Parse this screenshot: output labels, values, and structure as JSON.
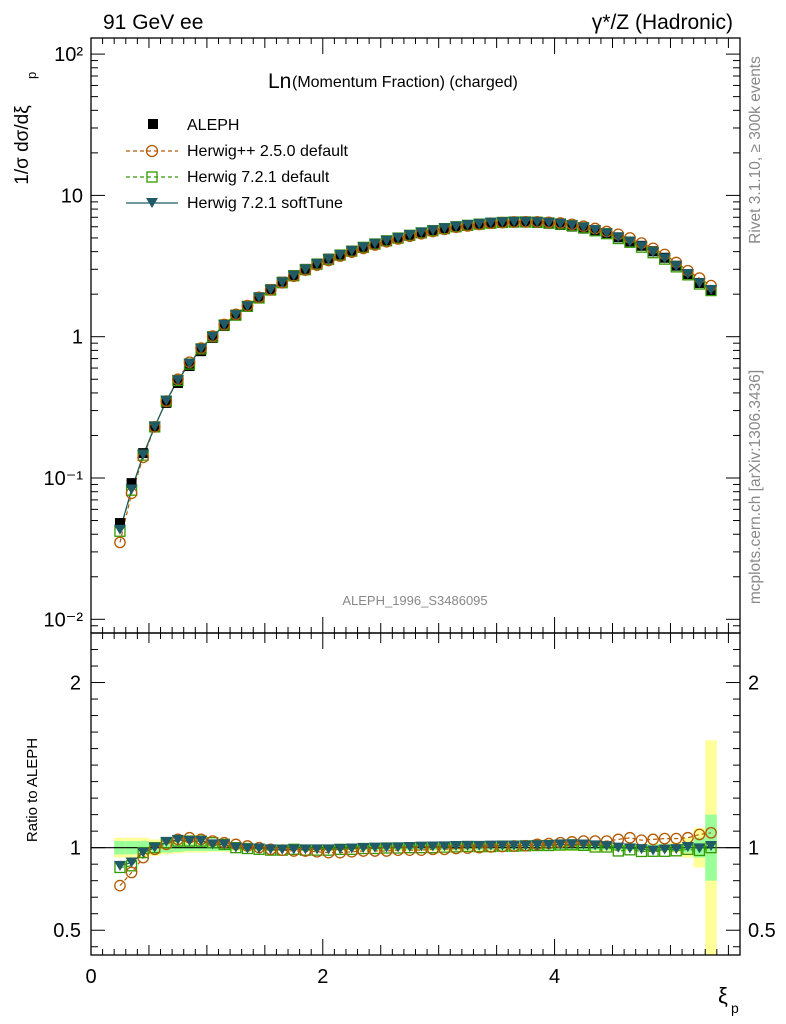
{
  "header": {
    "left": "91 GeV ee",
    "right": "γ*/Z (Hadronic)"
  },
  "side": {
    "rivet": "Rivet 3.1.10, ≥ 300k events",
    "mcplots": "mcplots.cern.ch [arXiv:1306.3436]"
  },
  "analysis_id": "ALEPH_1996_S3486095",
  "colors": {
    "aleph": "#000000",
    "herwigpp": "#b35900",
    "herwig721": "#339900",
    "softtune": "#1f5a66",
    "band_inner": "#99ff99",
    "band_outer": "#ffff99"
  },
  "chart_data": [
    {
      "type": "scatter",
      "title_main": "Ln",
      "title_rest": "(Momentum Fraction) (charged)",
      "xlabel": "ξ",
      "xlabel_sub": "p",
      "ylabel": "1/σ dσ/dξ",
      "ylabel_sub": "p",
      "yscale": "log",
      "xlim": [
        0,
        5.6
      ],
      "ylim": [
        0.008,
        130
      ],
      "ytick_labels": [
        "10⁻²",
        "10⁻¹",
        "1",
        "10",
        "10²"
      ],
      "legend_position": "top-left",
      "legend": [
        "ALEPH",
        "Herwig++ 2.5.0 default",
        "Herwig 7.2.1 default",
        "Herwig 7.2.1 softTune"
      ],
      "x": [
        0.25,
        0.35,
        0.45,
        0.55,
        0.65,
        0.75,
        0.85,
        0.95,
        1.05,
        1.15,
        1.25,
        1.35,
        1.45,
        1.55,
        1.65,
        1.75,
        1.85,
        1.95,
        2.05,
        2.15,
        2.25,
        2.35,
        2.45,
        2.55,
        2.65,
        2.75,
        2.85,
        2.95,
        3.05,
        3.15,
        3.25,
        3.35,
        3.45,
        3.55,
        3.65,
        3.75,
        3.85,
        3.95,
        4.05,
        4.15,
        4.25,
        4.35,
        4.45,
        4.55,
        4.65,
        4.75,
        4.85,
        4.95,
        5.05,
        5.15,
        5.25,
        5.35
      ],
      "series": [
        {
          "name": "ALEPH",
          "values": [
            0.048,
            0.092,
            0.15,
            0.23,
            0.34,
            0.47,
            0.62,
            0.79,
            0.98,
            1.19,
            1.42,
            1.65,
            1.9,
            2.17,
            2.45,
            2.73,
            3.02,
            3.3,
            3.57,
            3.82,
            4.07,
            4.31,
            4.55,
            4.78,
            5.0,
            5.22,
            5.43,
            5.62,
            5.8,
            5.97,
            6.1,
            6.22,
            6.32,
            6.38,
            6.42,
            6.42,
            6.38,
            6.3,
            6.18,
            6.02,
            5.82,
            5.6,
            5.34,
            5.05,
            4.72,
            4.4,
            4.02,
            3.62,
            3.18,
            2.77,
            2.4,
            2.12
          ]
        },
        {
          "name": "Herwig++ 2.5.0 default",
          "values": [
            0.035,
            0.078,
            0.14,
            0.23,
            0.35,
            0.5,
            0.66,
            0.83,
            1.01,
            1.22,
            1.44,
            1.66,
            1.9,
            2.15,
            2.41,
            2.68,
            2.96,
            3.21,
            3.46,
            3.72,
            3.97,
            4.22,
            4.46,
            4.7,
            4.92,
            5.14,
            5.35,
            5.55,
            5.75,
            5.95,
            6.08,
            6.22,
            6.35,
            6.42,
            6.48,
            6.5,
            6.5,
            6.45,
            6.38,
            6.24,
            6.05,
            5.83,
            5.55,
            5.3,
            5.0,
            4.6,
            4.22,
            3.82,
            3.35,
            2.93,
            2.6,
            2.3
          ]
        },
        {
          "name": "Herwig 7.2.1 default",
          "values": [
            0.042,
            0.082,
            0.145,
            0.23,
            0.35,
            0.49,
            0.64,
            0.82,
            1.0,
            1.21,
            1.42,
            1.64,
            1.88,
            2.14,
            2.41,
            2.7,
            2.98,
            3.26,
            3.52,
            3.78,
            4.03,
            4.29,
            4.53,
            4.77,
            4.99,
            5.22,
            5.43,
            5.63,
            5.82,
            6.0,
            6.14,
            6.26,
            6.36,
            6.44,
            6.48,
            6.49,
            6.46,
            6.38,
            6.28,
            6.12,
            5.9,
            5.62,
            5.36,
            4.95,
            4.66,
            4.3,
            3.93,
            3.54,
            3.12,
            2.74,
            2.36,
            2.12
          ]
        },
        {
          "name": "Herwig 7.2.1 softTune",
          "values": [
            0.043,
            0.083,
            0.146,
            0.231,
            0.352,
            0.492,
            0.645,
            0.822,
            1.0,
            1.21,
            1.42,
            1.64,
            1.89,
            2.15,
            2.42,
            2.7,
            2.99,
            3.27,
            3.53,
            3.79,
            4.05,
            4.3,
            4.55,
            4.78,
            5.01,
            5.24,
            5.46,
            5.66,
            5.85,
            6.03,
            6.17,
            6.29,
            6.4,
            6.46,
            6.5,
            6.5,
            6.47,
            6.4,
            6.3,
            6.14,
            5.93,
            5.68,
            5.39,
            5.05,
            4.7,
            4.36,
            3.95,
            3.58,
            3.15,
            2.78,
            2.39,
            2.14
          ]
        }
      ]
    },
    {
      "type": "scatter",
      "ylabel": "Ratio to ALEPH",
      "xlim": [
        0,
        5.6
      ],
      "ylim": [
        0.35,
        2.3
      ],
      "xtick_labels": [
        "0",
        "2",
        "4"
      ],
      "ytick_labels": [
        "0.5",
        "1",
        "2"
      ],
      "band_inner": [
        0.04,
        0.04,
        0.04,
        0.035,
        0.03,
        0.025,
        0.02,
        0.02,
        0.02,
        0.02,
        0.015,
        0.015,
        0.015,
        0.015,
        0.015,
        0.015,
        0.015,
        0.015,
        0.015,
        0.015,
        0.015,
        0.015,
        0.015,
        0.015,
        0.015,
        0.015,
        0.015,
        0.015,
        0.015,
        0.015,
        0.015,
        0.015,
        0.015,
        0.015,
        0.015,
        0.015,
        0.015,
        0.015,
        0.015,
        0.015,
        0.015,
        0.015,
        0.015,
        0.015,
        0.015,
        0.015,
        0.02,
        0.02,
        0.02,
        0.03,
        0.06,
        0.2
      ],
      "band_outer": [
        0.06,
        0.06,
        0.06,
        0.05,
        0.04,
        0.035,
        0.03,
        0.03,
        0.025,
        0.025,
        0.02,
        0.02,
        0.02,
        0.02,
        0.02,
        0.02,
        0.02,
        0.02,
        0.02,
        0.02,
        0.02,
        0.02,
        0.02,
        0.02,
        0.02,
        0.02,
        0.02,
        0.02,
        0.02,
        0.02,
        0.02,
        0.02,
        0.02,
        0.02,
        0.02,
        0.02,
        0.02,
        0.02,
        0.02,
        0.02,
        0.02,
        0.02,
        0.02,
        0.02,
        0.02,
        0.02,
        0.025,
        0.025,
        0.03,
        0.06,
        0.12,
        0.65
      ],
      "series": [
        {
          "name": "Herwig++ 2.5.0 default",
          "values": [
            0.77,
            0.85,
            0.94,
            0.99,
            1.02,
            1.05,
            1.06,
            1.05,
            1.04,
            1.03,
            1.02,
            1.01,
            1.0,
            0.99,
            0.985,
            0.98,
            0.98,
            0.975,
            0.97,
            0.97,
            0.975,
            0.98,
            0.98,
            0.98,
            0.985,
            0.985,
            0.985,
            0.99,
            0.99,
            0.995,
            0.997,
            1.0,
            1.005,
            1.007,
            1.01,
            1.012,
            1.02,
            1.025,
            1.03,
            1.035,
            1.04,
            1.04,
            1.04,
            1.05,
            1.06,
            1.045,
            1.05,
            1.055,
            1.055,
            1.06,
            1.08,
            1.09
          ]
        },
        {
          "name": "Herwig 7.2.1 default",
          "values": [
            0.88,
            0.89,
            0.97,
            1.0,
            1.03,
            1.04,
            1.04,
            1.04,
            1.03,
            1.02,
            1.0,
            0.995,
            0.99,
            0.985,
            0.985,
            0.99,
            0.985,
            0.985,
            0.985,
            0.99,
            0.99,
            0.995,
            0.995,
            0.998,
            0.998,
            1.0,
            1.0,
            1.0,
            1.003,
            1.005,
            1.007,
            1.006,
            1.006,
            1.009,
            1.009,
            1.011,
            1.013,
            1.013,
            1.016,
            1.017,
            1.014,
            1.004,
            1.004,
            0.98,
            0.987,
            0.977,
            0.978,
            0.978,
            0.981,
            0.99,
            0.983,
            1.0
          ]
        },
        {
          "name": "Herwig 7.2.1 softTune",
          "values": [
            0.89,
            0.91,
            0.97,
            1.0,
            1.035,
            1.047,
            1.04,
            1.04,
            1.02,
            1.02,
            1.0,
            0.995,
            0.995,
            0.99,
            0.988,
            0.99,
            0.99,
            0.99,
            0.99,
            0.992,
            0.995,
            0.998,
            1.0,
            1.0,
            1.002,
            1.004,
            1.006,
            1.007,
            1.008,
            1.01,
            1.011,
            1.011,
            1.012,
            1.012,
            1.012,
            1.012,
            1.014,
            1.016,
            1.019,
            1.02,
            1.019,
            1.014,
            1.009,
            1.0,
            0.996,
            0.991,
            0.983,
            0.989,
            0.991,
            1.004,
            0.996,
            1.01
          ]
        }
      ]
    }
  ]
}
